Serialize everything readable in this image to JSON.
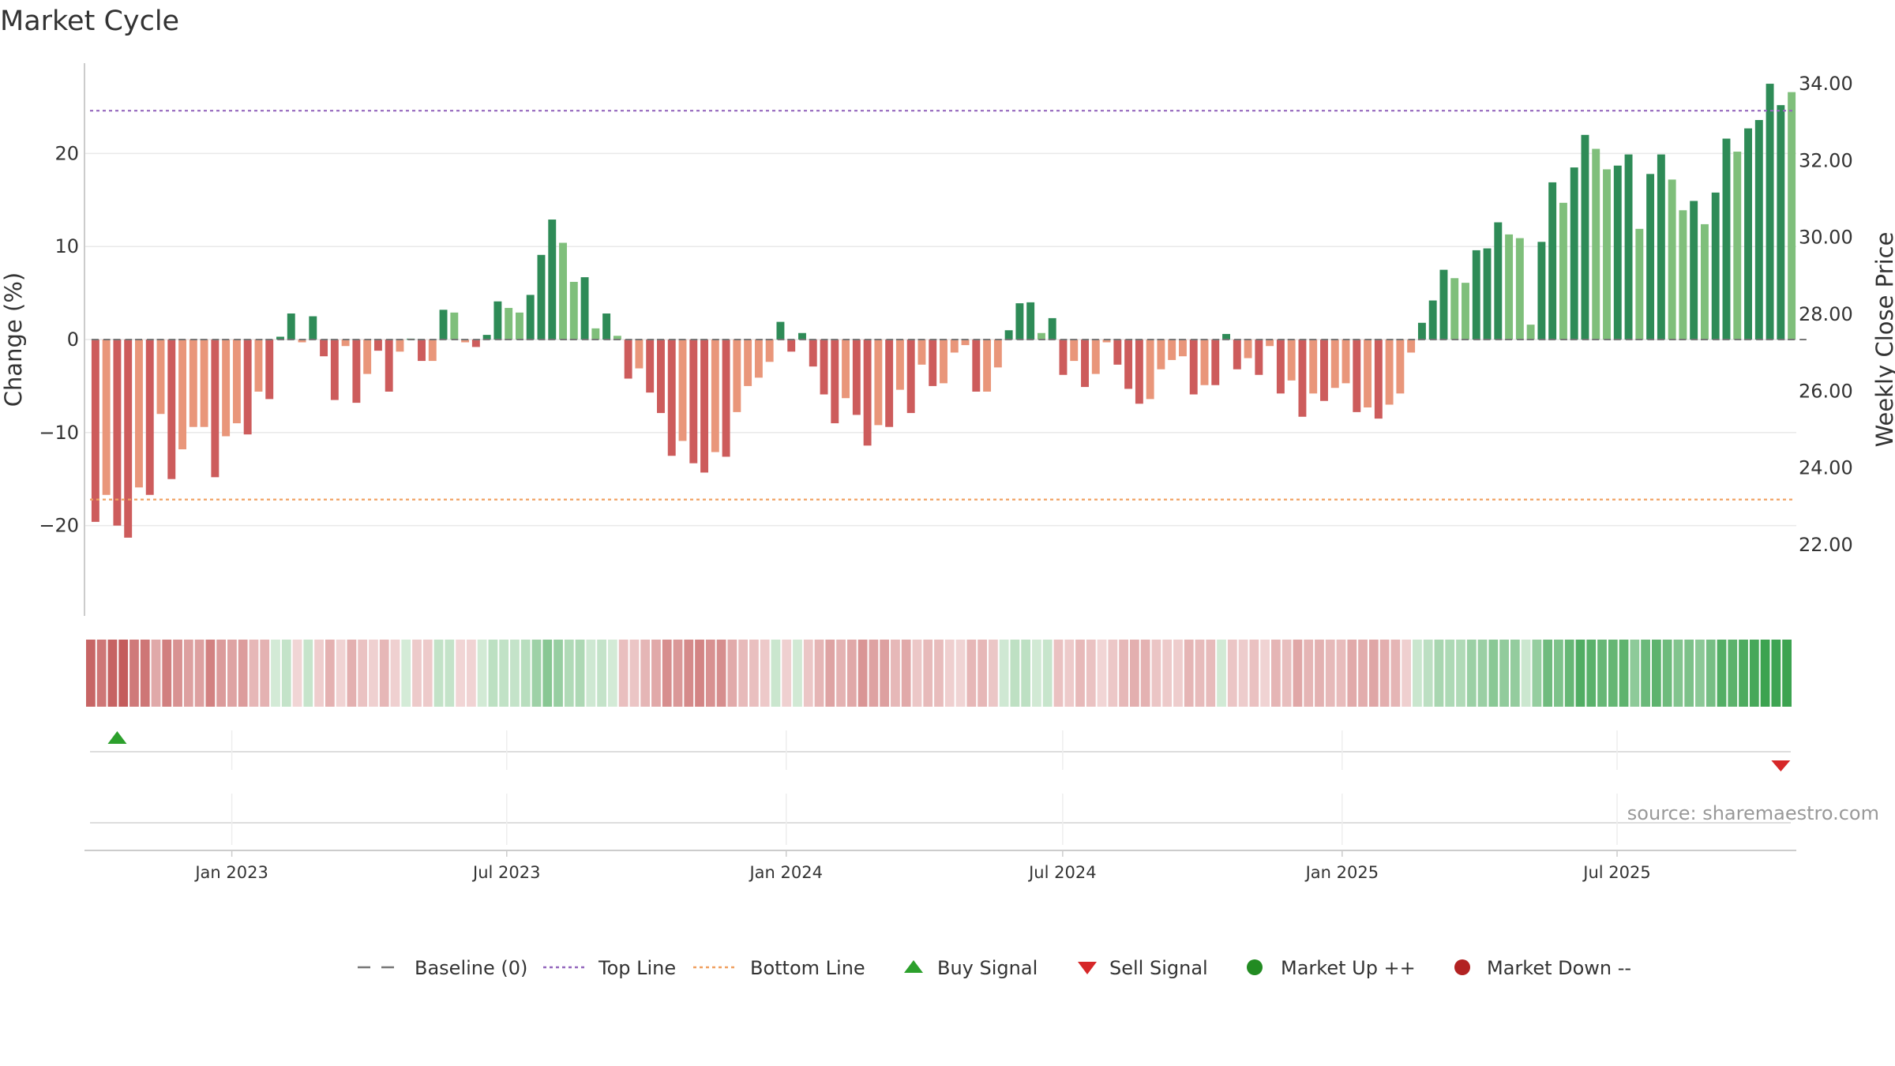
{
  "chart_data": {
    "type": "bar",
    "title": "Market Cycle",
    "ylabel": "Change (%)",
    "y2label": "Weekly Close Price",
    "ylim": [
      -30,
      30
    ],
    "y_ticks": [
      {
        "v": 20,
        "label": "20"
      },
      {
        "v": 10,
        "label": "10"
      },
      {
        "v": 0,
        "label": "0"
      },
      {
        "v": -10,
        "label": "−10"
      },
      {
        "v": -20,
        "label": "−20"
      }
    ],
    "y2lim": [
      20.0,
      34.5
    ],
    "y2_ticks": [
      {
        "v": 34,
        "label": "34.00"
      },
      {
        "v": 32,
        "label": "32.00"
      },
      {
        "v": 30,
        "label": "30.00"
      },
      {
        "v": 28,
        "label": "28.00"
      },
      {
        "v": 26,
        "label": "26.00"
      },
      {
        "v": 24,
        "label": "24.00"
      },
      {
        "v": 22,
        "label": "22.00"
      }
    ],
    "x_start": "2022-09-26",
    "x_end": "2025-10-27",
    "x_ticks": [
      {
        "date": "2023-01-01",
        "label": "Jan 2023"
      },
      {
        "date": "2023-07-01",
        "label": "Jul 2023"
      },
      {
        "date": "2024-01-01",
        "label": "Jan 2024"
      },
      {
        "date": "2024-07-01",
        "label": "Jul 2024"
      },
      {
        "date": "2025-01-01",
        "label": "Jan 2025"
      },
      {
        "date": "2025-07-01",
        "label": "Jul 2025"
      }
    ],
    "top_line": 24.6,
    "bottom_line": -17.2,
    "weekly_change": [
      -19.6,
      -16.7,
      -20.0,
      -21.3,
      -15.9,
      -16.7,
      -8.0,
      -15.0,
      -11.8,
      -9.4,
      -9.4,
      -14.8,
      -10.4,
      -9.0,
      -10.2,
      -5.6,
      -6.4,
      0.3,
      2.8,
      -0.3,
      2.5,
      -1.8,
      -6.5,
      -0.7,
      -6.8,
      -3.7,
      -1.2,
      -5.6,
      -1.3,
      0.1,
      -2.3,
      -2.3,
      3.2,
      2.9,
      -0.3,
      -0.8,
      0.5,
      4.1,
      3.4,
      2.9,
      4.8,
      9.1,
      12.9,
      10.4,
      6.2,
      6.7,
      1.2,
      2.8,
      0.4,
      -4.2,
      -3.1,
      -5.7,
      -7.9,
      -12.5,
      -10.9,
      -13.3,
      -14.3,
      -12.1,
      -12.6,
      -7.8,
      -5.0,
      -4.1,
      -2.4,
      1.9,
      -1.3,
      0.7,
      -2.9,
      -5.9,
      -9.0,
      -6.3,
      -8.1,
      -11.4,
      -9.2,
      -9.4,
      -5.4,
      -7.9,
      -2.7,
      -5.0,
      -4.7,
      -1.4,
      -0.6,
      -5.6,
      -5.6,
      -3.0,
      1.0,
      3.9,
      4.0,
      0.7,
      2.3,
      -3.8,
      -2.3,
      -5.1,
      -3.7,
      -0.3,
      -2.7,
      -5.3,
      -6.9,
      -6.4,
      -3.2,
      -2.2,
      -1.8,
      -5.9,
      -4.9,
      -4.9,
      0.6,
      -3.2,
      -2.0,
      -3.8,
      -0.7,
      -5.8,
      -4.4,
      -8.3,
      -5.8,
      -6.6,
      -5.2,
      -4.7,
      -7.8,
      -7.3,
      -8.5,
      -7.0,
      -5.8,
      -1.4,
      1.8,
      4.2,
      7.5,
      6.6,
      6.1,
      9.6,
      9.8,
      12.6,
      11.3,
      10.9,
      1.6,
      10.5,
      16.9,
      14.7,
      18.5,
      22.0,
      20.5,
      18.3,
      18.7,
      19.9,
      11.9,
      17.8,
      19.9,
      17.2,
      13.9,
      14.9,
      12.4,
      15.8,
      21.6,
      20.2,
      22.7,
      23.6,
      27.5,
      25.2,
      26.6
    ],
    "bar_colors": [
      "#cd5c5c",
      "#e9967a",
      "#cd5c5c",
      "#cd5c5c",
      "#e9967a",
      "#cd5c5c",
      "#e9967a",
      "#cd5c5c",
      "#e9967a",
      "#e9967a",
      "#e9967a",
      "#cd5c5c",
      "#e9967a",
      "#e9967a",
      "#cd5c5c",
      "#e9967a",
      "#cd5c5c",
      "#2e8b57",
      "#2e8b57",
      "#e9967a",
      "#2e8b57",
      "#cd5c5c",
      "#cd5c5c",
      "#e9967a",
      "#cd5c5c",
      "#e9967a",
      "#cd5c5c",
      "#cd5c5c",
      "#e9967a",
      "#2e8b57",
      "#cd5c5c",
      "#e9967a",
      "#2e8b57",
      "#7fbf7b",
      "#e9967a",
      "#cd5c5c",
      "#2e8b57",
      "#2e8b57",
      "#7fbf7b",
      "#7fbf7b",
      "#2e8b57",
      "#2e8b57",
      "#2e8b57",
      "#7fbf7b",
      "#7fbf7b",
      "#2e8b57",
      "#7fbf7b",
      "#2e8b57",
      "#7fbf7b",
      "#cd5c5c",
      "#e9967a",
      "#cd5c5c",
      "#cd5c5c",
      "#cd5c5c",
      "#e9967a",
      "#cd5c5c",
      "#cd5c5c",
      "#e9967a",
      "#cd5c5c",
      "#e9967a",
      "#e9967a",
      "#e9967a",
      "#e9967a",
      "#2e8b57",
      "#cd5c5c",
      "#2e8b57",
      "#cd5c5c",
      "#cd5c5c",
      "#cd5c5c",
      "#e9967a",
      "#cd5c5c",
      "#cd5c5c",
      "#e9967a",
      "#cd5c5c",
      "#e9967a",
      "#cd5c5c",
      "#e9967a",
      "#cd5c5c",
      "#e9967a",
      "#e9967a",
      "#e9967a",
      "#cd5c5c",
      "#e9967a",
      "#e9967a",
      "#2e8b57",
      "#2e8b57",
      "#2e8b57",
      "#7fbf7b",
      "#2e8b57",
      "#cd5c5c",
      "#e9967a",
      "#cd5c5c",
      "#e9967a",
      "#e9967a",
      "#cd5c5c",
      "#cd5c5c",
      "#cd5c5c",
      "#e9967a",
      "#e9967a",
      "#e9967a",
      "#e9967a",
      "#cd5c5c",
      "#e9967a",
      "#cd5c5c",
      "#2e8b57",
      "#cd5c5c",
      "#e9967a",
      "#cd5c5c",
      "#e9967a",
      "#cd5c5c",
      "#e9967a",
      "#cd5c5c",
      "#e9967a",
      "#cd5c5c",
      "#e9967a",
      "#e9967a",
      "#cd5c5c",
      "#e9967a",
      "#cd5c5c",
      "#e9967a",
      "#e9967a",
      "#e9967a",
      "#2e8b57",
      "#2e8b57",
      "#2e8b57",
      "#7fbf7b",
      "#7fbf7b",
      "#2e8b57",
      "#2e8b57",
      "#2e8b57",
      "#7fbf7b",
      "#7fbf7b",
      "#7fbf7b",
      "#2e8b57",
      "#2e8b57",
      "#7fbf7b",
      "#2e8b57",
      "#2e8b57",
      "#7fbf7b",
      "#7fbf7b",
      "#2e8b57",
      "#2e8b57",
      "#7fbf7b",
      "#2e8b57",
      "#2e8b57",
      "#7fbf7b",
      "#7fbf7b",
      "#2e8b57",
      "#7fbf7b",
      "#2e8b57",
      "#2e8b57",
      "#7fbf7b",
      "#2e8b57",
      "#2e8b57",
      "#2e8b57",
      "#2e8b57",
      "#7fbf7b",
      "#2e8b57"
    ],
    "signals": [
      {
        "type": "buy",
        "week_index": 2,
        "label": "Buy Signal"
      },
      {
        "type": "sell",
        "week_index": 155,
        "label": "Sell Signal"
      }
    ],
    "legend_position": "bottom-center",
    "legend": [
      {
        "label": "Baseline (0)",
        "kind": "dash-line",
        "color": "#777777"
      },
      {
        "label": "Top Line",
        "kind": "dot-line",
        "color": "#9467bd"
      },
      {
        "label": "Bottom Line",
        "kind": "dot-line",
        "color": "#f0a060"
      },
      {
        "label": "Buy Signal",
        "kind": "triangle-up",
        "color": "#2ca02c"
      },
      {
        "label": "Sell Signal",
        "kind": "triangle-down",
        "color": "#d62728"
      },
      {
        "label": "Market Up ++",
        "kind": "circle",
        "color": "#228b22"
      },
      {
        "label": "Market Down --",
        "kind": "circle",
        "color": "#b22222"
      }
    ],
    "source": "source: sharemaestro.com"
  }
}
